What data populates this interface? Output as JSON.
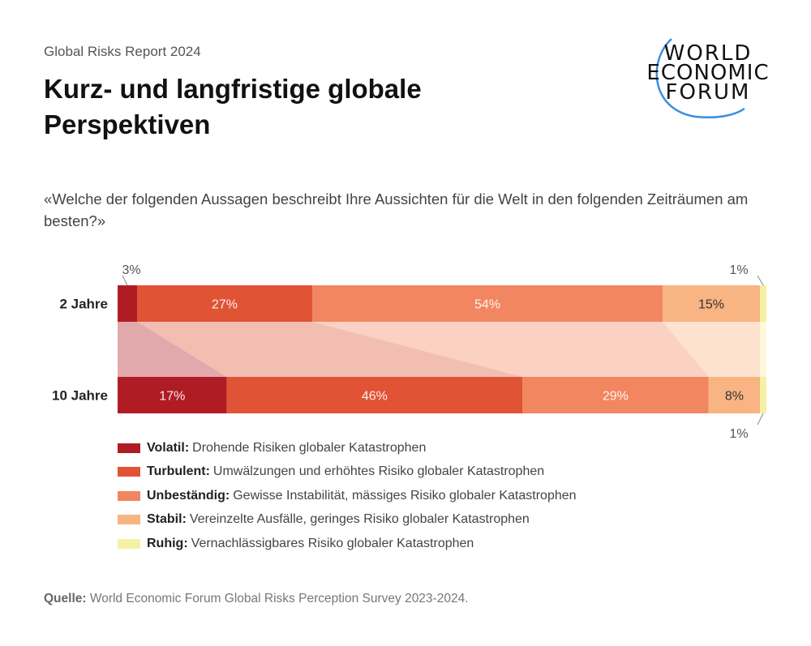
{
  "header": {
    "report": "Global Risks Report 2024",
    "title": "Kurz- und langfristige globale Perspektiven",
    "logo_text": "WORLD ECONOMIC FORUM"
  },
  "question": "«Welche der folgenden Aussagen beschreibt Ihre Aussichten für die Welt in den folgenden Zeiträumen am besten?»",
  "chart_data": {
    "type": "bar",
    "stacked": true,
    "orientation": "horizontal",
    "unit": "%",
    "categories": [
      "2 Jahre",
      "10 Jahre"
    ],
    "series": [
      {
        "name": "Volatil",
        "values": [
          3,
          17
        ],
        "color": "#b01c24"
      },
      {
        "name": "Turbulent",
        "values": [
          27,
          46
        ],
        "color": "#e05335"
      },
      {
        "name": "Unbeständig",
        "values": [
          54,
          29
        ],
        "color": "#f28660"
      },
      {
        "name": "Stabil",
        "values": [
          15,
          8
        ],
        "color": "#f8b482"
      },
      {
        "name": "Ruhig",
        "values": [
          1,
          1
        ],
        "color": "#f6f0a4"
      }
    ]
  },
  "legend": [
    {
      "label": "Volatil:",
      "desc": "Drohende Risiken globaler Katastrophen"
    },
    {
      "label": "Turbulent:",
      "desc": "Umwälzungen und erhöhtes Risiko globaler Katastrophen"
    },
    {
      "label": "Unbeständig:",
      "desc": "Gewisse Instabilität, mässiges Risiko globaler Katastrophen"
    },
    {
      "label": "Stabil:",
      "desc": "Vereinzelte Ausfälle, geringes Risiko globaler Katastrophen"
    },
    {
      "label": "Ruhig:",
      "desc": "Vernachlässigbares Risiko globaler Katastrophen"
    }
  ],
  "source": {
    "label": "Quelle:",
    "text": "World Economic Forum Global Risks Perception Survey 2023-2024."
  }
}
